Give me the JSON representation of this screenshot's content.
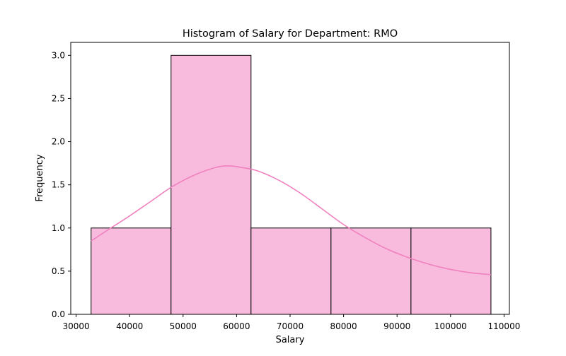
{
  "chart_data": {
    "type": "histogram",
    "title": "Histogram of Salary for Department: RMO",
    "xlabel": "Salary",
    "ylabel": "Frequency",
    "xlim": [
      29000,
      111000
    ],
    "ylim": [
      0,
      3.15
    ],
    "xticks": [
      {
        "value": 30000,
        "label": "30000"
      },
      {
        "value": 40000,
        "label": "40000"
      },
      {
        "value": 50000,
        "label": "50000"
      },
      {
        "value": 60000,
        "label": "60000"
      },
      {
        "value": 70000,
        "label": "70000"
      },
      {
        "value": 80000,
        "label": "80000"
      },
      {
        "value": 90000,
        "label": "90000"
      },
      {
        "value": 100000,
        "label": "100000"
      },
      {
        "value": 110000,
        "label": "110000"
      }
    ],
    "yticks": [
      {
        "value": 0.0,
        "label": "0.0"
      },
      {
        "value": 0.5,
        "label": "0.5"
      },
      {
        "value": 1.0,
        "label": "1.0"
      },
      {
        "value": 1.5,
        "label": "1.5"
      },
      {
        "value": 2.0,
        "label": "2.0"
      },
      {
        "value": 2.5,
        "label": "2.5"
      },
      {
        "value": 3.0,
        "label": "3.0"
      }
    ],
    "bins": [
      {
        "start": 32800,
        "end": 47750,
        "count": 1
      },
      {
        "start": 47750,
        "end": 62700,
        "count": 3
      },
      {
        "start": 62700,
        "end": 77650,
        "count": 1
      },
      {
        "start": 77650,
        "end": 92600,
        "count": 1
      },
      {
        "start": 92600,
        "end": 107550,
        "count": 1
      }
    ],
    "kde": {
      "x": [
        32800,
        36000,
        40000,
        44000,
        48000,
        52000,
        56000,
        58500,
        61000,
        64000,
        68000,
        72000,
        76000,
        80000,
        84000,
        88000,
        92000,
        96000,
        100000,
        104000,
        107550
      ],
      "y": [
        0.85,
        0.98,
        1.14,
        1.31,
        1.48,
        1.61,
        1.7,
        1.72,
        1.7,
        1.66,
        1.55,
        1.4,
        1.22,
        1.04,
        0.89,
        0.76,
        0.66,
        0.58,
        0.52,
        0.48,
        0.46
      ]
    },
    "grid": false,
    "legend": "none",
    "colors": {
      "bar_fill": "#f8bbdd",
      "bar_edge": "#000000",
      "kde_line": "#f081bf"
    }
  }
}
